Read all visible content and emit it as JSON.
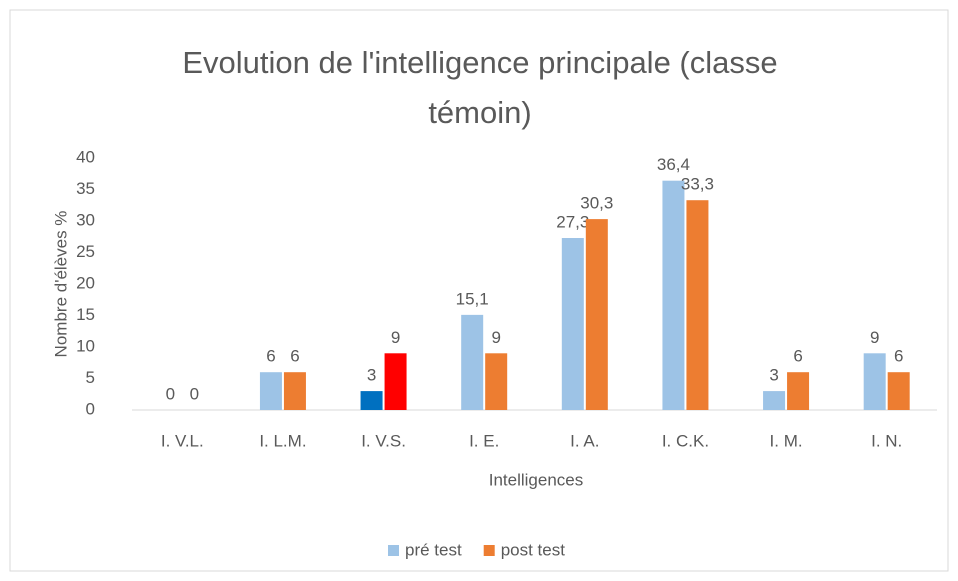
{
  "chart_data": {
    "type": "bar",
    "title": "Evolution de l'intelligence principale (classe témoin)",
    "x_label": "Intelligences",
    "y_label": "Nombre d'élèves %",
    "categories": [
      "I. V.L.",
      "I. L.M.",
      "I. V.S.",
      "I. E.",
      "I. A.",
      "I. C.K.",
      "I. M.",
      "I. N."
    ],
    "series": [
      {
        "name": "pré test",
        "color": "#9dc3e6",
        "colors": [
          "#9dc3e6",
          "#9dc3e6",
          "#0070c0",
          "#9dc3e6",
          "#9dc3e6",
          "#9dc3e6",
          "#9dc3e6",
          "#9dc3e6"
        ],
        "values": [
          0,
          6,
          3,
          15.1,
          27.3,
          36.4,
          3,
          9
        ],
        "value_labels": [
          "0",
          "6",
          "3",
          "15,1",
          "27,3",
          "36,4",
          "3",
          "9"
        ]
      },
      {
        "name": "post test",
        "color": "#ed7d31",
        "colors": [
          "#ed7d31",
          "#ed7d31",
          "#ff0000",
          "#ed7d31",
          "#ed7d31",
          "#ed7d31",
          "#ed7d31",
          "#ed7d31"
        ],
        "values": [
          0,
          6,
          9,
          9,
          30.3,
          33.3,
          6,
          6
        ],
        "value_labels": [
          "0",
          "6",
          "9",
          "9",
          "30,3",
          "33,3",
          "6",
          "6"
        ]
      }
    ],
    "ylim": [
      0,
      40
    ],
    "yticks": [
      0,
      5,
      10,
      15,
      20,
      25,
      30,
      35,
      40
    ],
    "grid": false,
    "legend": "bottom"
  }
}
